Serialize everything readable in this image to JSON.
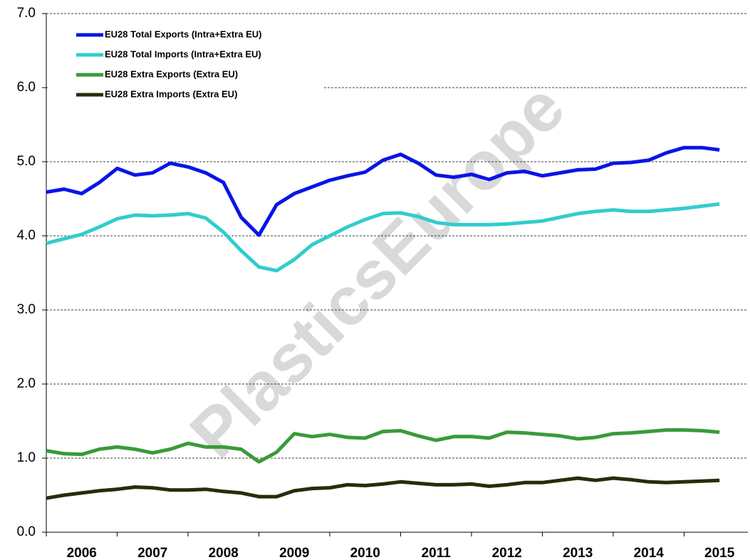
{
  "chart_data": {
    "type": "line",
    "watermark": "PlasticsEurope",
    "x": [
      2006.0,
      2006.25,
      2006.5,
      2006.75,
      2007.0,
      2007.25,
      2007.5,
      2007.75,
      2008.0,
      2008.25,
      2008.5,
      2008.75,
      2009.0,
      2009.25,
      2009.5,
      2009.75,
      2010.0,
      2010.25,
      2010.5,
      2010.75,
      2011.0,
      2011.25,
      2011.5,
      2011.75,
      2012.0,
      2012.25,
      2012.5,
      2012.75,
      2013.0,
      2013.25,
      2013.5,
      2013.75,
      2014.0,
      2014.25,
      2014.5,
      2014.75,
      2015.0,
      2015.25,
      2015.5
    ],
    "series": [
      {
        "name": "EU28 Total Exports (Intra+Extra EU)",
        "color": "#0a14e6",
        "values": [
          4.59,
          4.63,
          4.57,
          4.72,
          4.91,
          4.82,
          4.85,
          4.98,
          4.93,
          4.85,
          4.72,
          4.25,
          4.01,
          4.42,
          4.57,
          4.66,
          4.75,
          4.81,
          4.86,
          5.02,
          5.1,
          4.98,
          4.82,
          4.79,
          4.83,
          4.76,
          4.85,
          4.87,
          4.81,
          4.85,
          4.89,
          4.9,
          4.98,
          4.99,
          5.02,
          5.12,
          5.19,
          5.19,
          5.16
        ]
      },
      {
        "name": "EU28 Total Imports (Intra+Extra EU)",
        "color": "#33cccc",
        "values": [
          3.9,
          3.96,
          4.02,
          4.12,
          4.23,
          4.28,
          4.27,
          4.28,
          4.3,
          4.24,
          4.05,
          3.8,
          3.58,
          3.53,
          3.68,
          3.88,
          4.0,
          4.12,
          4.22,
          4.3,
          4.31,
          4.26,
          4.18,
          4.15,
          4.15,
          4.15,
          4.16,
          4.18,
          4.2,
          4.25,
          4.3,
          4.33,
          4.35,
          4.33,
          4.33,
          4.35,
          4.37,
          4.4,
          4.43
        ]
      },
      {
        "name": "EU28 Extra Exports (Extra EU)",
        "color": "#3a9a3a",
        "values": [
          1.1,
          1.06,
          1.05,
          1.12,
          1.15,
          1.12,
          1.07,
          1.12,
          1.2,
          1.15,
          1.15,
          1.12,
          0.95,
          1.08,
          1.33,
          1.29,
          1.32,
          1.28,
          1.27,
          1.36,
          1.37,
          1.3,
          1.24,
          1.29,
          1.29,
          1.27,
          1.35,
          1.34,
          1.32,
          1.3,
          1.26,
          1.28,
          1.33,
          1.34,
          1.36,
          1.38,
          1.38,
          1.37,
          1.35
        ]
      },
      {
        "name": "EU28 Extra Imports (Extra EU)",
        "color": "#2b2a0a",
        "values": [
          0.46,
          0.5,
          0.53,
          0.56,
          0.58,
          0.61,
          0.6,
          0.57,
          0.57,
          0.58,
          0.55,
          0.53,
          0.48,
          0.48,
          0.56,
          0.59,
          0.6,
          0.64,
          0.63,
          0.65,
          0.68,
          0.66,
          0.64,
          0.64,
          0.65,
          0.62,
          0.64,
          0.67,
          0.67,
          0.7,
          0.73,
          0.7,
          0.73,
          0.71,
          0.68,
          0.67,
          0.68,
          0.69,
          0.7
        ]
      }
    ],
    "xlim": [
      2006,
      2015.9
    ],
    "xticks": [
      2006,
      2007,
      2008,
      2009,
      2010,
      2011,
      2012,
      2013,
      2014,
      2015
    ],
    "ylim": [
      0,
      7
    ],
    "yticks": [
      {
        "value": 0,
        "label": "0.0"
      },
      {
        "value": 1,
        "label": "1.0"
      },
      {
        "value": 2,
        "label": "2.0"
      },
      {
        "value": 3,
        "label": "3.0"
      },
      {
        "value": 4,
        "label": "4.0"
      },
      {
        "value": 5,
        "label": "5.0"
      },
      {
        "value": 6,
        "label": "6.0"
      },
      {
        "value": 7,
        "label": "7.0"
      }
    ],
    "grid": true,
    "legend": "top-left"
  }
}
